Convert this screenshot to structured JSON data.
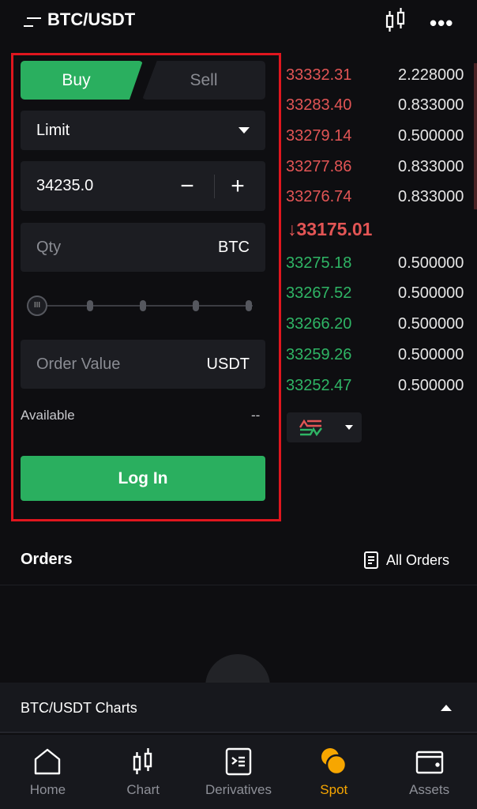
{
  "header": {
    "title": "BTC/USDT",
    "menu_icon": "menu-icon",
    "chart_icon": "candlestick-icon",
    "more_icon": "more-icon"
  },
  "form": {
    "buy": "Buy",
    "sell": "Sell",
    "order_type": "Limit",
    "price": "34235.0",
    "qty_placeholder": "Qty",
    "qty_unit": "BTC",
    "slider_percent": 0,
    "order_value_placeholder": "Order Value",
    "order_value_unit": "USDT",
    "available_label": "Available",
    "available_value": "--",
    "login": "Log In"
  },
  "orderbook": {
    "asks": [
      {
        "price": "33332.31",
        "qty": "2.228000"
      },
      {
        "price": "33283.40",
        "qty": "0.833000"
      },
      {
        "price": "33279.14",
        "qty": "0.500000"
      },
      {
        "price": "33277.86",
        "qty": "0.833000"
      },
      {
        "price": "33276.74",
        "qty": "0.833000"
      }
    ],
    "last_price": "33175.01",
    "last_arrow": "↓",
    "bids": [
      {
        "price": "33275.18",
        "qty": "0.500000"
      },
      {
        "price": "33267.52",
        "qty": "0.500000"
      },
      {
        "price": "33266.20",
        "qty": "0.500000"
      },
      {
        "price": "33259.26",
        "qty": "0.500000"
      },
      {
        "price": "33252.47",
        "qty": "0.500000"
      }
    ]
  },
  "orders": {
    "title": "Orders",
    "all_orders": "All Orders"
  },
  "charts_panel": {
    "title": "BTC/USDT Charts"
  },
  "nav": [
    {
      "label": "Home"
    },
    {
      "label": "Chart"
    },
    {
      "label": "Derivatives"
    },
    {
      "label": "Spot",
      "active": true
    },
    {
      "label": "Assets"
    }
  ],
  "colors": {
    "green": "#2aaf5f",
    "red": "#e25555",
    "accent": "#f7a600"
  }
}
